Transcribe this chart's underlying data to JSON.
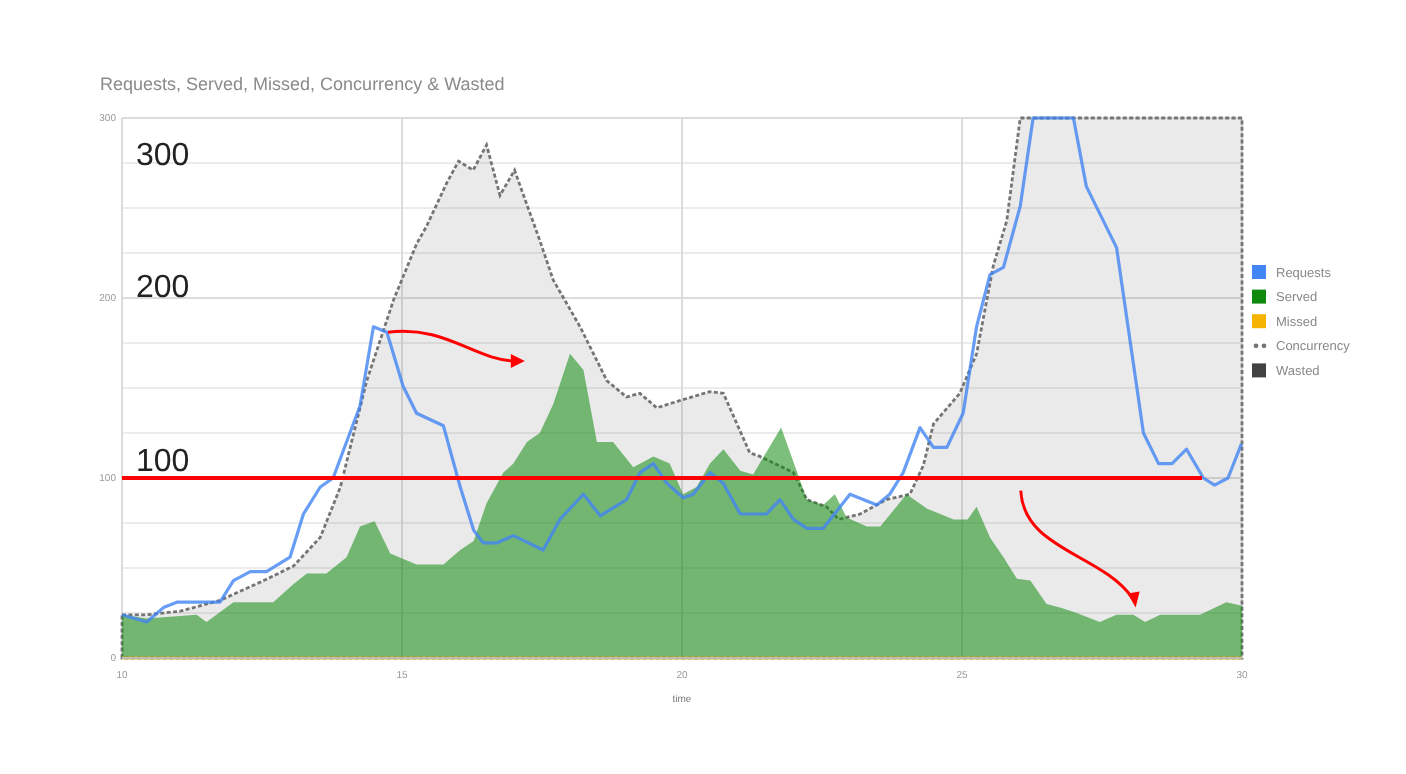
{
  "chart_data": {
    "type": "line",
    "title": "Requests, Served, Missed, Concurrency & Wasted",
    "xlabel": "time",
    "xlim": [
      10,
      30
    ],
    "xticks": [
      10,
      15,
      20,
      25,
      30
    ],
    "ylim": [
      0,
      300
    ],
    "yticks": [
      0,
      {
        "value": 25,
        "label": null
      },
      {
        "value": 50,
        "label": null
      },
      {
        "value": 75,
        "label": null
      },
      100,
      {
        "value": 125,
        "label": null
      },
      {
        "value": 150,
        "label": null
      },
      {
        "value": 175,
        "label": null
      },
      200,
      {
        "value": 225,
        "label": null
      },
      {
        "value": 250,
        "label": null
      },
      {
        "value": 275,
        "label": null
      },
      300
    ],
    "grid": true,
    "legend": "right",
    "series": [
      {
        "name": "Requests",
        "color": "#4285f4",
        "x": [
          10,
          10.44,
          10.74,
          10.98,
          11.75,
          11.99,
          12.29,
          12.58,
          13,
          13.24,
          13.54,
          13.77,
          14.25,
          14.49,
          14.73,
          15.02,
          15.26,
          15.74,
          16.04,
          16.28,
          16.45,
          16.7,
          16.99,
          17.52,
          17.82,
          18.24,
          18.54,
          19.01,
          19.25,
          19.49,
          19.73,
          20.02,
          20.2,
          20.5,
          20.74,
          21.04,
          21.51,
          21.75,
          21.99,
          22.23,
          22.52,
          23,
          23.48,
          23.71,
          23.95,
          24.25,
          24.49,
          24.73,
          25.02,
          25.26,
          25.5,
          25.74,
          26.04,
          26.27,
          26.99,
          27.22,
          27.76,
          28.24,
          28.51,
          28.75,
          29.01,
          29.31,
          29.51,
          29.75,
          29.99
        ],
        "values": [
          24,
          20,
          28,
          31,
          31,
          43,
          48,
          48,
          56,
          80,
          95,
          100,
          140,
          184,
          181,
          151,
          136,
          129,
          95,
          71,
          64,
          64,
          68,
          60,
          77,
          91,
          79,
          88,
          103,
          108,
          97,
          89,
          91,
          103,
          97,
          80,
          80,
          88,
          77,
          72,
          72,
          91,
          85,
          91,
          103,
          128,
          117,
          117,
          136,
          184,
          213,
          217,
          251,
          300,
          300,
          262,
          228,
          125,
          108,
          108,
          116,
          100,
          96,
          100,
          119
        ]
      },
      {
        "name": "Served",
        "type": "area",
        "color": "#0f8a0f",
        "x": [
          10,
          10.44,
          11.33,
          11.51,
          11.99,
          12.7,
          13.06,
          13.3,
          13.65,
          14.01,
          14.25,
          14.51,
          14.79,
          15.26,
          15.74,
          16.04,
          16.28,
          16.51,
          16.81,
          16.99,
          17.23,
          17.46,
          17.7,
          18,
          18.24,
          18.48,
          18.77,
          19.13,
          19.49,
          19.78,
          20.02,
          20.26,
          20.5,
          20.74,
          21.04,
          21.27,
          21.77,
          22.23,
          22.52,
          22.73,
          22.94,
          23.3,
          23.54,
          24.01,
          24.37,
          24.85,
          25.1,
          25.26,
          25.5,
          25.74,
          25.98,
          26.22,
          26.51,
          26.75,
          27.05,
          27.46,
          27.76,
          28.06,
          28.27,
          28.54,
          29.25,
          29.72,
          30
        ],
        "values": [
          24,
          22,
          24,
          20,
          31,
          31,
          41,
          47,
          47,
          56,
          73,
          76,
          58,
          52,
          52,
          60,
          65,
          86,
          103,
          108,
          120,
          125,
          141,
          169,
          160,
          120,
          120,
          106,
          112,
          108,
          91,
          95,
          108,
          116,
          104,
          102,
          128,
          88,
          85,
          91,
          78,
          73,
          73,
          91,
          83,
          77,
          77,
          84,
          67,
          56,
          44,
          43,
          30,
          28,
          25,
          20,
          24,
          24,
          20,
          24,
          24,
          31,
          29
        ]
      },
      {
        "name": "Missed",
        "type": "line",
        "color": "#f4b400",
        "x": [
          10,
          30
        ],
        "values": [
          0,
          0
        ]
      },
      {
        "name": "Concurrency",
        "type": "area",
        "line_style": "dotted",
        "color": "#757575",
        "x": [
          10,
          10.44,
          11.04,
          11.75,
          12.46,
          13.06,
          13.54,
          13.9,
          14.37,
          14.85,
          15.26,
          15.44,
          15.8,
          16.01,
          16.27,
          16.51,
          16.75,
          17.01,
          17.46,
          17.7,
          18.18,
          18.66,
          19.01,
          19.25,
          19.55,
          19.96,
          20.5,
          20.74,
          21.21,
          21.39,
          21.99,
          22.23,
          22.58,
          22.8,
          23.18,
          23.65,
          24.07,
          24.31,
          24.49,
          24.96,
          25.26,
          25.56,
          25.8,
          26.04,
          30
        ],
        "values": [
          24,
          24,
          26,
          32,
          42,
          51,
          67,
          95,
          154,
          199,
          230,
          240,
          264,
          276,
          271,
          285,
          257,
          271,
          232,
          210,
          184,
          154,
          145,
          147,
          139,
          143,
          148,
          147,
          114,
          112,
          103,
          88,
          84,
          77,
          80,
          88,
          91,
          107,
          130,
          147,
          169,
          218,
          243,
          300,
          300
        ]
      },
      {
        "name": "Wasted",
        "color": "#424242"
      }
    ],
    "ref_lines": [
      {
        "axis": "y",
        "value": 100,
        "color": "#ff0000"
      }
    ],
    "annotations": [
      "300",
      "200",
      "100"
    ]
  }
}
